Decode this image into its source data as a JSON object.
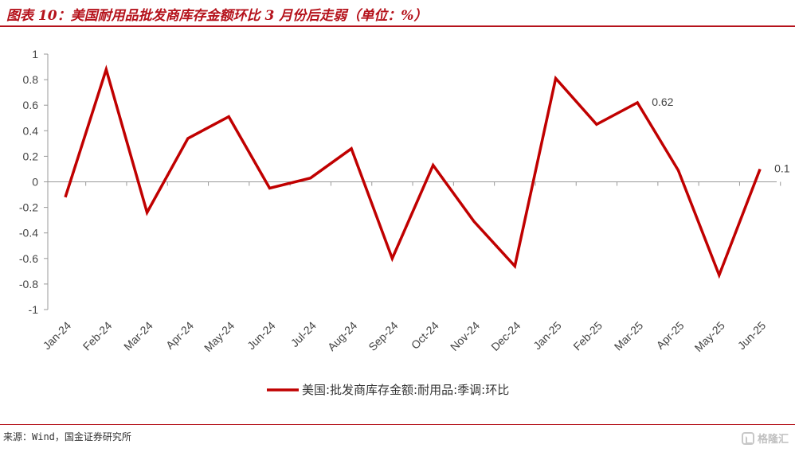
{
  "title": "图表 10：美国耐用品批发商库存金额环比 3 月份后走弱（单位：%）",
  "source": "来源：Wind，国金证券研究所",
  "watermark": "格隆汇",
  "chart_data": {
    "type": "line",
    "categories": [
      "Jan-24",
      "Feb-24",
      "Mar-24",
      "Apr-24",
      "May-24",
      "Jun-24",
      "Jul-24",
      "Aug-24",
      "Sep-24",
      "Oct-24",
      "Nov-24",
      "Dec-24",
      "Jan-25",
      "Feb-25",
      "Mar-25",
      "Apr-25",
      "May-25",
      "Jun-25"
    ],
    "series": [
      {
        "name": "美国:批发商库存金额:耐用品:季调:环比",
        "color": "#c00000",
        "values": [
          -0.12,
          0.88,
          -0.24,
          0.34,
          0.51,
          -0.05,
          0.03,
          0.26,
          -0.6,
          0.13,
          -0.31,
          -0.66,
          0.81,
          0.45,
          0.62,
          0.09,
          -0.73,
          0.1
        ]
      }
    ],
    "yticks": [
      "1",
      "0.8",
      "0.6",
      "0.4",
      "0.2",
      "0",
      "-0.2",
      "-0.4",
      "-0.6",
      "-0.8",
      "-1"
    ],
    "ylim": [
      -1,
      1
    ],
    "annotations": [
      {
        "index": 14,
        "text": "0.62"
      },
      {
        "index": 17,
        "text": "0.1"
      }
    ],
    "grid": false,
    "legend": "bottom-center"
  }
}
